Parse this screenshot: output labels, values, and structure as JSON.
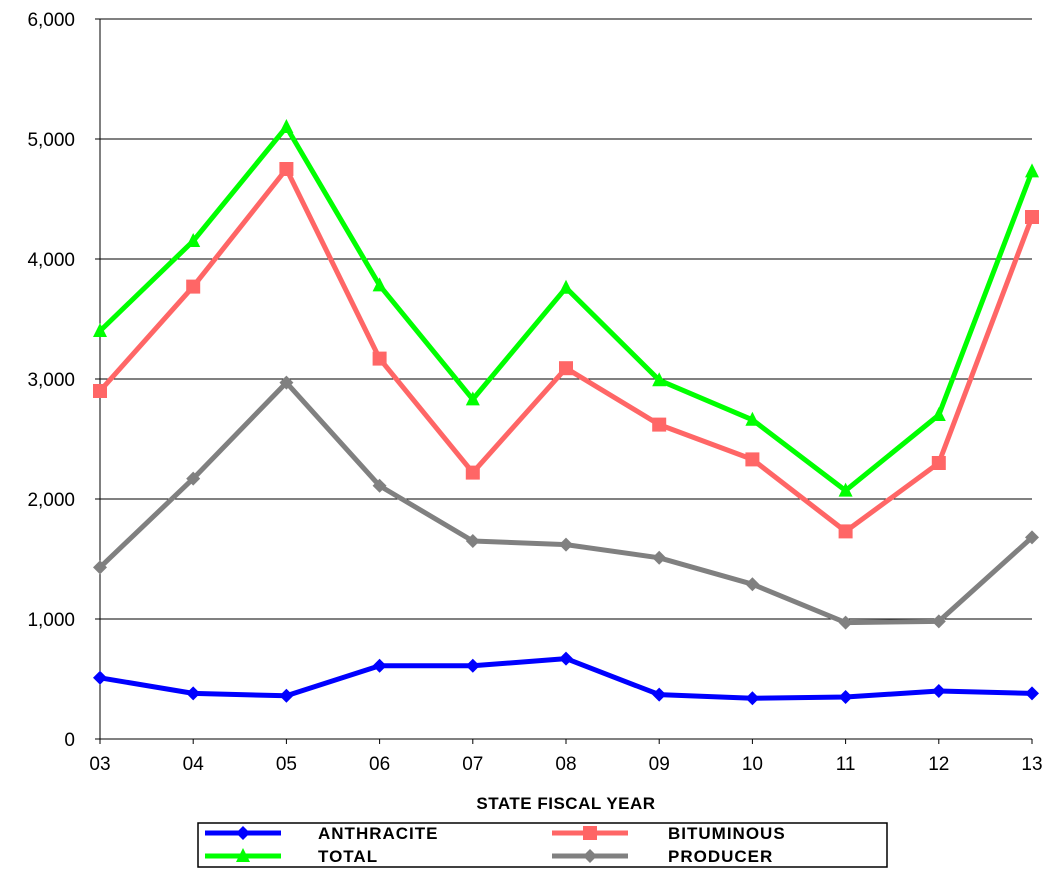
{
  "chart_data": {
    "type": "line",
    "title": "",
    "xlabel": "STATE FISCAL YEAR",
    "ylabel": "",
    "x": [
      "03",
      "04",
      "05",
      "06",
      "07",
      "08",
      "09",
      "10",
      "11",
      "12",
      "13"
    ],
    "ylim": [
      0,
      6000
    ],
    "yticks": [
      0,
      1000,
      2000,
      3000,
      4000,
      5000,
      6000
    ],
    "ytick_labels": [
      "0",
      "1,000",
      "2,000",
      "3,000",
      "4,000",
      "5,000",
      "6,000"
    ],
    "grid": "horizontal",
    "legend_position": "bottom",
    "series": [
      {
        "name": "ANTHRACITE",
        "color": "#0000ff",
        "marker": "diamond",
        "values": [
          510,
          380,
          360,
          610,
          610,
          670,
          370,
          340,
          350,
          400,
          380
        ]
      },
      {
        "name": "BITUMINOUS",
        "color": "#ff6666",
        "marker": "square",
        "values": [
          2900,
          3770,
          4750,
          3170,
          2220,
          3090,
          2620,
          2330,
          1730,
          2300,
          4350
        ]
      },
      {
        "name": "TOTAL",
        "color": "#00ff00",
        "marker": "triangle",
        "values": [
          3400,
          4150,
          5100,
          3780,
          2830,
          3760,
          2990,
          2660,
          2070,
          2700,
          4730
        ]
      },
      {
        "name": "PRODUCER",
        "color": "#808080",
        "marker": "diamond",
        "values": [
          1430,
          2170,
          2970,
          2110,
          1650,
          1620,
          1510,
          1290,
          970,
          980,
          1680
        ]
      }
    ]
  }
}
